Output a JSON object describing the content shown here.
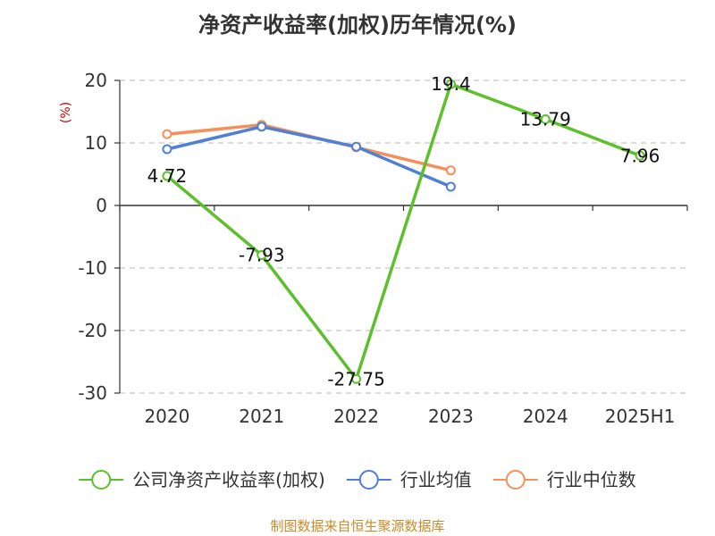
{
  "title": "净资产收益率(加权)历年情况(%)",
  "source": "制图数据来自恒生聚源数据库",
  "chart_data": {
    "type": "line",
    "title": "净资产收益率(加权)历年情况(%)",
    "ylabel": "(%)",
    "xlabel": "",
    "categories": [
      "2020",
      "2021",
      "2022",
      "2023",
      "2024",
      "2025H1"
    ],
    "ylim": [
      -30,
      20
    ],
    "yticks": [
      20,
      10,
      0,
      -10,
      -20,
      -30
    ],
    "grid": true,
    "legend_position": "bottom",
    "series": [
      {
        "name": "公司净资产收益率(加权)",
        "color": "#5cc02a",
        "values": [
          4.72,
          -7.93,
          -27.75,
          19.4,
          13.79,
          7.96
        ],
        "labels": [
          "4.72",
          "-7.93",
          "-27.75",
          "19.4",
          "13.79",
          "7.96"
        ]
      },
      {
        "name": "行业均值",
        "color": "#4f7fd6",
        "values": [
          9.0,
          12.6,
          9.4,
          3.0,
          null,
          null
        ]
      },
      {
        "name": "行业中位数",
        "color": "#f5905a",
        "values": [
          11.4,
          12.9,
          9.3,
          5.6,
          null,
          null
        ]
      }
    ]
  }
}
